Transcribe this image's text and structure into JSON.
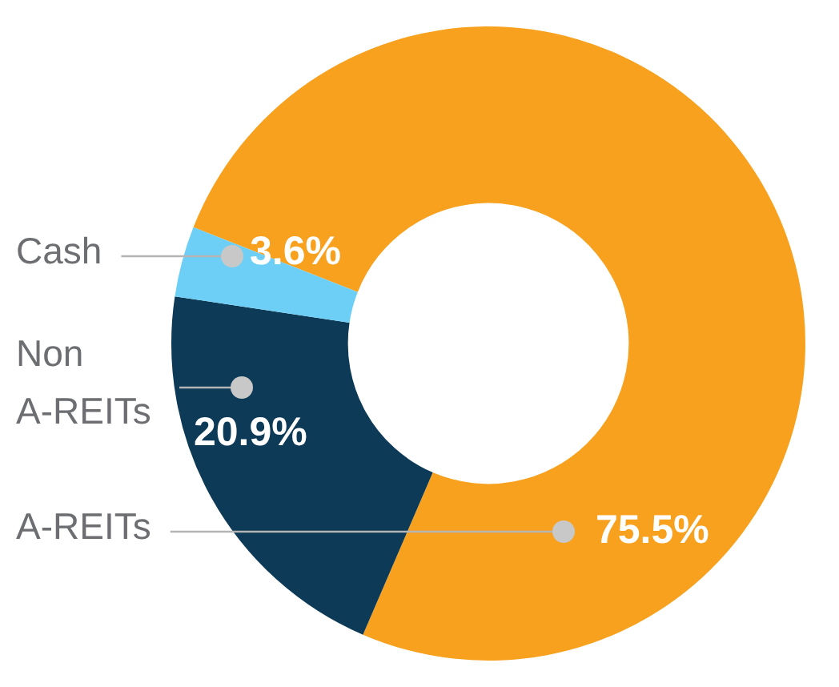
{
  "chart_data": {
    "type": "donut",
    "categories": [
      "A-REITs",
      "Non A-REITs",
      "Cash"
    ],
    "values": [
      75.5,
      20.9,
      3.6
    ],
    "colors": [
      "#f7a11f",
      "#0d3a57",
      "#6ecff6"
    ],
    "value_labels": [
      "75.5%",
      "20.9%",
      "3.6%"
    ],
    "legend": false
  }
}
